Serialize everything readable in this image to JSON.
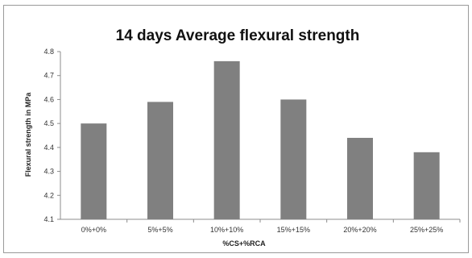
{
  "chart_data": {
    "type": "bar",
    "title": "14 days Average flexural strength",
    "xlabel": "%CS+%RCA",
    "ylabel": "Flexural strength in MPa",
    "categories": [
      "0%+0%",
      "5%+5%",
      "10%+10%",
      "15%+15%",
      "20%+20%",
      "25%+25%"
    ],
    "values": [
      4.5,
      4.59,
      4.76,
      4.6,
      4.44,
      4.38
    ],
    "ylim": [
      4.1,
      4.8
    ],
    "yticks": [
      "4.1",
      "4.2",
      "4.3",
      "4.4",
      "4.5",
      "4.6",
      "4.7",
      "4.8"
    ],
    "grid": false,
    "legend": "none",
    "bar_color": "#808080"
  }
}
